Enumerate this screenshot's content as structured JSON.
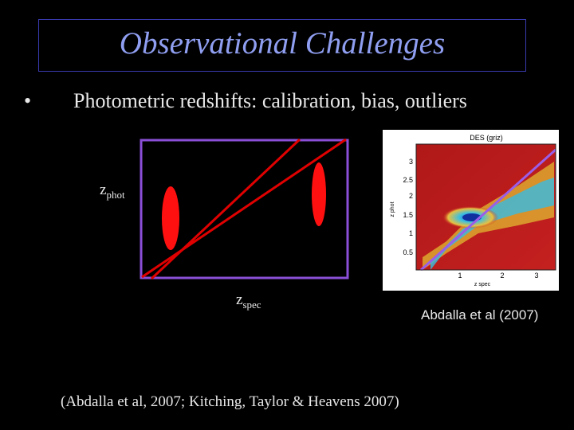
{
  "slide": {
    "title": "Observational Challenges",
    "bullet_symbol": "•",
    "bullet_text": "Photometric redshifts: calibration, bias, outliers",
    "diagram": {
      "y_label_main": "z",
      "y_label_sub": "phot",
      "x_label_main": "z",
      "x_label_sub": "spec"
    },
    "des_plot": {
      "title": "DES (griz)",
      "y_ticks": [
        "3",
        "2.5",
        "2",
        "1.5",
        "1",
        "0.5"
      ],
      "x_ticks": [
        "1",
        "2",
        "3"
      ],
      "y_axis_label": "z phot",
      "x_axis_label": "z spec"
    },
    "caption": "Abdalla et al (2007)",
    "reference": "(Abdalla et al, 2007; Kitching, Taylor & Heavens 2007)"
  },
  "colors": {
    "background": "#000000",
    "title": "#8f9ef0",
    "frame": "#8a4fd6",
    "lines": "#e00000",
    "text": "#e8e8e8"
  }
}
